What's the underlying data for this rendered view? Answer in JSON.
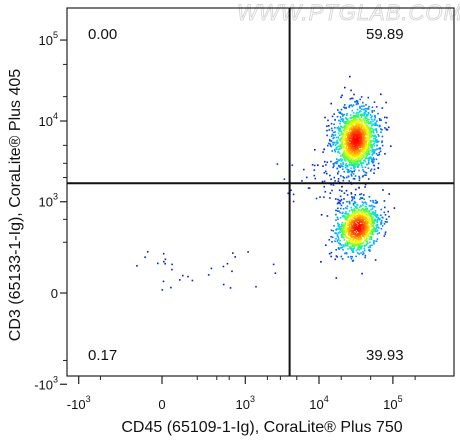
{
  "chart_data": {
    "type": "scatter",
    "title": "",
    "xlabel": "CD45 (65109-1-Ig), CoraLite® Plus 750",
    "ylabel": "CD3 (65133-1-Ig), CoraLite® Plus 405",
    "x_scale": "biexponential",
    "y_scale": "biexponential",
    "x_ticks": [
      {
        "value": -1000,
        "base": "-10",
        "exp": "3"
      },
      {
        "value": 0,
        "base": "0",
        "exp": ""
      },
      {
        "value": 1000,
        "base": "10",
        "exp": "3"
      },
      {
        "value": 10000,
        "base": "10",
        "exp": "4"
      },
      {
        "value": 100000,
        "base": "10",
        "exp": "5"
      }
    ],
    "y_ticks": [
      {
        "value": -1000,
        "base": "-10",
        "exp": "3"
      },
      {
        "value": 0,
        "base": "0",
        "exp": ""
      },
      {
        "value": 1000,
        "base": "10",
        "exp": "3"
      },
      {
        "value": 10000,
        "base": "10",
        "exp": "4"
      },
      {
        "value": 100000,
        "base": "10",
        "exp": "5"
      }
    ],
    "gates": {
      "x": 4000,
      "y": 1700
    },
    "quadrants": {
      "top_left": "0.00",
      "top_right": "59.89",
      "bottom_left": "0.17",
      "bottom_right": "39.93"
    },
    "populations": [
      {
        "name": "",
        "center_x": 31000,
        "center_y": 6000,
        "fraction": 0.6
      },
      {
        "name": "",
        "center_x": 33000,
        "center_y": 480,
        "fraction": 0.4
      }
    ],
    "colormap": [
      "#0000c8",
      "#0078ff",
      "#00d2ff",
      "#3cff3c",
      "#ffff00",
      "#ff8c00",
      "#ff0000"
    ],
    "grid": false
  },
  "watermark": "WWW.PTGLAB.COM"
}
